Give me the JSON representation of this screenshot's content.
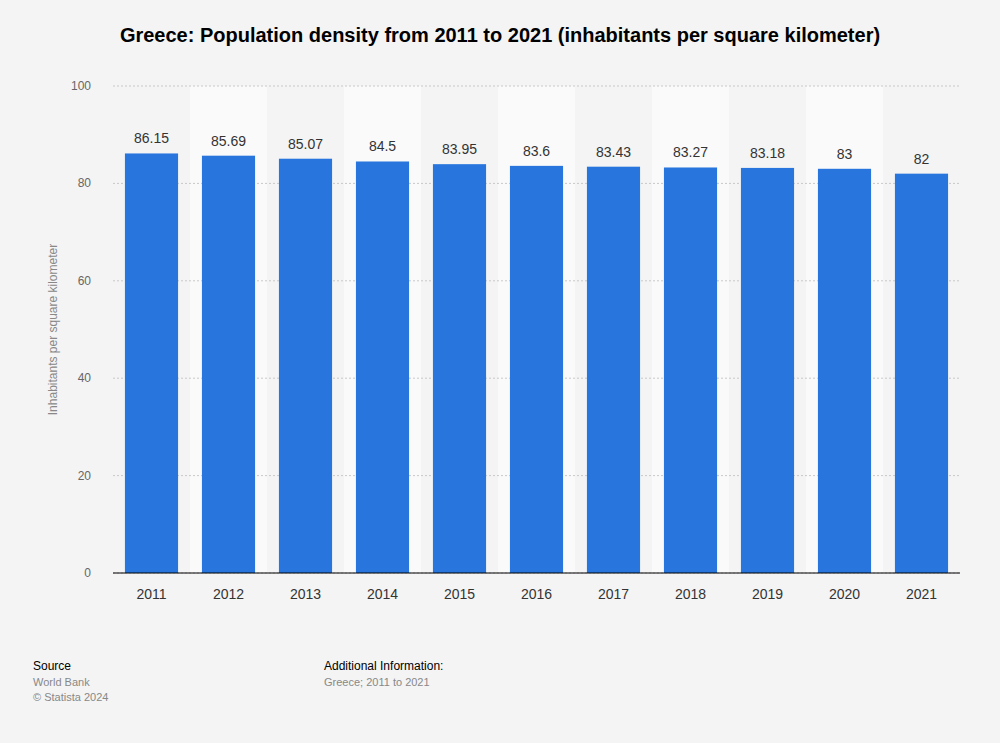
{
  "chart_data": {
    "type": "bar",
    "title": "Greece: Population density from 2011 to 2021 (inhabitants per square kilometer)",
    "y_label": "Inhabitants per square kilometer",
    "categories": [
      "2011",
      "2012",
      "2013",
      "2014",
      "2015",
      "2016",
      "2017",
      "2018",
      "2019",
      "2020",
      "2021"
    ],
    "values": [
      86.15,
      85.69,
      85.07,
      84.5,
      83.95,
      83.6,
      83.43,
      83.27,
      83.18,
      83,
      82
    ],
    "color": "#2876dd",
    "ylim": [
      0,
      100
    ],
    "yticks": [
      0,
      20,
      40,
      60,
      80,
      100
    ],
    "grid": true,
    "data_labels": true,
    "source_label": "Source",
    "source": "World Bank",
    "copyright": "© Statista 2024",
    "additional_info_label": "Additional Information:",
    "additional_info": "Greece; 2011 to 2021"
  }
}
